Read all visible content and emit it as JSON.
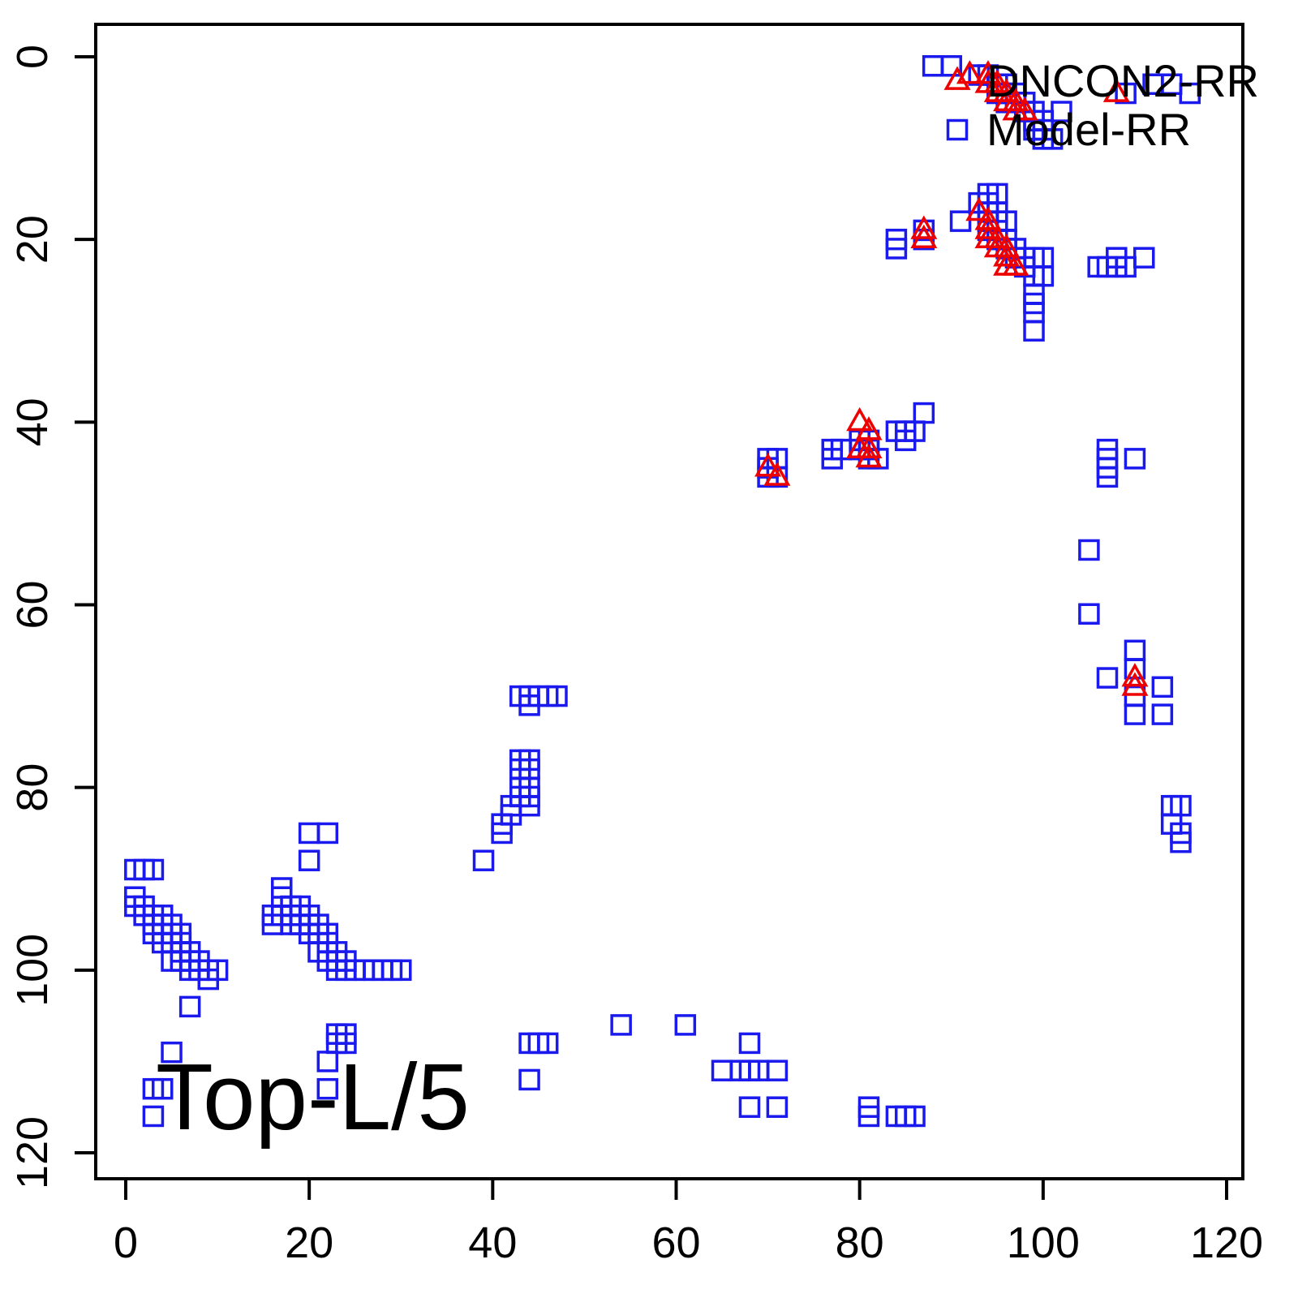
{
  "chart_data": {
    "type": "scatter",
    "title": "",
    "corner_label": "Top-L/5",
    "xlabel": "",
    "ylabel": "",
    "xlim": [
      0,
      120
    ],
    "ylim": [
      120,
      0
    ],
    "y_axis_reversed": true,
    "grid": false,
    "x_ticks": [
      0,
      20,
      40,
      60,
      80,
      100,
      120
    ],
    "y_ticks": [
      0,
      20,
      40,
      60,
      80,
      100,
      120
    ],
    "colors": {
      "square": "#1a1aee",
      "triangle": "#ee0000",
      "axis": "#000000"
    },
    "legend": {
      "position": "topright",
      "entries": [
        {
          "label": "DNCON2-RR",
          "symbol": "red-triangle",
          "color": "#ee0000"
        },
        {
          "label": "Model-RR",
          "symbol": "blue-square",
          "color": "#1a1aee"
        }
      ]
    },
    "series": [
      {
        "name": "Model-RR",
        "marker": "square",
        "color": "#1a1aee",
        "points": [
          [
            88,
            1
          ],
          [
            90,
            1
          ],
          [
            93,
            2
          ],
          [
            94,
            2
          ],
          [
            95,
            3
          ],
          [
            96,
            3
          ],
          [
            95,
            4
          ],
          [
            96,
            4
          ],
          [
            97,
            4
          ],
          [
            96,
            5
          ],
          [
            97,
            5
          ],
          [
            98,
            5
          ],
          [
            98,
            6
          ],
          [
            99,
            6
          ],
          [
            99,
            7
          ],
          [
            100,
            7
          ],
          [
            99,
            8
          ],
          [
            100,
            8
          ],
          [
            100,
            9
          ],
          [
            101,
            9
          ],
          [
            102,
            6
          ],
          [
            109,
            4
          ],
          [
            112,
            3
          ],
          [
            114,
            3
          ],
          [
            116,
            4
          ],
          [
            84,
            20
          ],
          [
            84,
            21
          ],
          [
            87,
            19
          ],
          [
            87,
            20
          ],
          [
            91,
            18
          ],
          [
            93,
            16
          ],
          [
            94,
            15
          ],
          [
            95,
            15
          ],
          [
            94,
            16
          ],
          [
            94,
            17
          ],
          [
            95,
            17
          ],
          [
            94,
            18
          ],
          [
            95,
            18
          ],
          [
            94,
            19
          ],
          [
            95,
            20
          ],
          [
            96,
            18
          ],
          [
            96,
            20
          ],
          [
            96,
            21
          ],
          [
            97,
            21
          ],
          [
            97,
            22
          ],
          [
            98,
            22
          ],
          [
            98,
            23
          ],
          [
            99,
            22
          ],
          [
            100,
            22
          ],
          [
            99,
            24
          ],
          [
            100,
            24
          ],
          [
            99,
            26
          ],
          [
            99,
            27
          ],
          [
            99,
            28
          ],
          [
            99,
            30
          ],
          [
            106,
            23
          ],
          [
            107,
            23
          ],
          [
            108,
            22
          ],
          [
            108,
            23
          ],
          [
            109,
            23
          ],
          [
            111,
            22
          ],
          [
            70,
            44
          ],
          [
            71,
            44
          ],
          [
            70,
            45
          ],
          [
            70,
            46
          ],
          [
            71,
            46
          ],
          [
            77,
            43
          ],
          [
            78,
            43
          ],
          [
            77,
            44
          ],
          [
            80,
            42
          ],
          [
            81,
            42
          ],
          [
            80,
            43
          ],
          [
            81,
            43
          ],
          [
            81,
            44
          ],
          [
            82,
            44
          ],
          [
            84,
            41
          ],
          [
            85,
            41
          ],
          [
            86,
            41
          ],
          [
            85,
            42
          ],
          [
            87,
            39
          ],
          [
            107,
            43
          ],
          [
            107,
            44
          ],
          [
            107,
            45
          ],
          [
            107,
            46
          ],
          [
            110,
            44
          ],
          [
            105,
            54
          ],
          [
            105,
            61
          ],
          [
            110,
            65
          ],
          [
            107,
            68
          ],
          [
            110,
            67
          ],
          [
            110,
            70
          ],
          [
            113,
            69
          ],
          [
            110,
            72
          ],
          [
            113,
            72
          ],
          [
            114,
            82
          ],
          [
            115,
            82
          ],
          [
            114,
            84
          ],
          [
            115,
            85
          ],
          [
            115,
            86
          ],
          [
            39,
            88
          ],
          [
            41,
            84
          ],
          [
            41,
            85
          ],
          [
            42,
            82
          ],
          [
            42,
            83
          ],
          [
            43,
            80
          ],
          [
            44,
            80
          ],
          [
            43,
            81
          ],
          [
            44,
            81
          ],
          [
            44,
            82
          ],
          [
            43,
            77
          ],
          [
            44,
            77
          ],
          [
            43,
            78
          ],
          [
            44,
            78
          ],
          [
            43,
            70
          ],
          [
            44,
            70
          ],
          [
            45,
            70
          ],
          [
            46,
            70
          ],
          [
            47,
            70
          ],
          [
            44,
            71
          ],
          [
            44,
            108
          ],
          [
            45,
            108
          ],
          [
            46,
            108
          ],
          [
            44,
            112
          ],
          [
            54,
            106
          ],
          [
            61,
            106
          ],
          [
            65,
            111
          ],
          [
            67,
            111
          ],
          [
            68,
            108
          ],
          [
            68,
            111
          ],
          [
            69,
            111
          ],
          [
            71,
            111
          ],
          [
            68,
            115
          ],
          [
            71,
            115
          ],
          [
            81,
            115
          ],
          [
            81,
            116
          ],
          [
            84,
            116
          ],
          [
            85,
            116
          ],
          [
            86,
            116
          ],
          [
            1,
            89
          ],
          [
            2,
            89
          ],
          [
            3,
            89
          ],
          [
            1,
            92
          ],
          [
            1,
            93
          ],
          [
            2,
            93
          ],
          [
            2,
            94
          ],
          [
            3,
            94
          ],
          [
            3,
            95
          ],
          [
            4,
            94
          ],
          [
            4,
            95
          ],
          [
            3,
            96
          ],
          [
            4,
            96
          ],
          [
            4,
            97
          ],
          [
            5,
            95
          ],
          [
            5,
            96
          ],
          [
            5,
            97
          ],
          [
            6,
            96
          ],
          [
            6,
            97
          ],
          [
            6,
            98
          ],
          [
            5,
            99
          ],
          [
            6,
            99
          ],
          [
            7,
            98
          ],
          [
            7,
            99
          ],
          [
            7,
            100
          ],
          [
            8,
            99
          ],
          [
            8,
            100
          ],
          [
            9,
            100
          ],
          [
            9,
            101
          ],
          [
            10,
            100
          ],
          [
            7,
            104
          ],
          [
            5,
            109
          ],
          [
            3,
            113
          ],
          [
            4,
            113
          ],
          [
            3,
            116
          ],
          [
            20,
            85
          ],
          [
            22,
            85
          ],
          [
            20,
            88
          ],
          [
            16,
            94
          ],
          [
            16,
            95
          ],
          [
            17,
            91
          ],
          [
            17,
            92
          ],
          [
            17,
            94
          ],
          [
            18,
            93
          ],
          [
            18,
            94
          ],
          [
            18,
            95
          ],
          [
            19,
            93
          ],
          [
            19,
            94
          ],
          [
            19,
            95
          ],
          [
            20,
            94
          ],
          [
            20,
            95
          ],
          [
            20,
            96
          ],
          [
            21,
            95
          ],
          [
            21,
            96
          ],
          [
            21,
            98
          ],
          [
            22,
            96
          ],
          [
            22,
            97
          ],
          [
            22,
            99
          ],
          [
            23,
            98
          ],
          [
            23,
            99
          ],
          [
            23,
            100
          ],
          [
            24,
            99
          ],
          [
            24,
            100
          ],
          [
            25,
            100
          ],
          [
            26,
            100
          ],
          [
            27,
            100
          ],
          [
            28,
            100
          ],
          [
            29,
            100
          ],
          [
            30,
            100
          ],
          [
            23,
            107
          ],
          [
            23,
            108
          ],
          [
            24,
            107
          ],
          [
            24,
            108
          ],
          [
            22,
            110
          ],
          [
            22,
            113
          ]
        ]
      },
      {
        "name": "DNCON2-RR",
        "marker": "triangle",
        "color": "#ee0000",
        "points": [
          [
            92,
            2
          ],
          [
            94,
            2
          ],
          [
            94,
            3
          ],
          [
            95,
            3
          ],
          [
            95,
            4
          ],
          [
            96,
            4
          ],
          [
            96,
            5
          ],
          [
            97,
            5
          ],
          [
            97,
            6
          ],
          [
            98,
            6
          ],
          [
            108,
            4
          ],
          [
            87,
            19
          ],
          [
            87,
            20
          ],
          [
            93,
            17
          ],
          [
            94,
            18
          ],
          [
            94,
            19
          ],
          [
            94,
            20
          ],
          [
            95,
            20
          ],
          [
            95,
            21
          ],
          [
            96,
            21
          ],
          [
            96,
            22
          ],
          [
            96,
            23
          ],
          [
            97,
            23
          ],
          [
            70,
            45
          ],
          [
            71,
            46
          ],
          [
            80,
            40
          ],
          [
            81,
            41
          ],
          [
            80,
            43
          ],
          [
            81,
            43
          ],
          [
            81,
            44
          ],
          [
            110,
            68
          ],
          [
            110,
            69
          ]
        ]
      }
    ]
  }
}
